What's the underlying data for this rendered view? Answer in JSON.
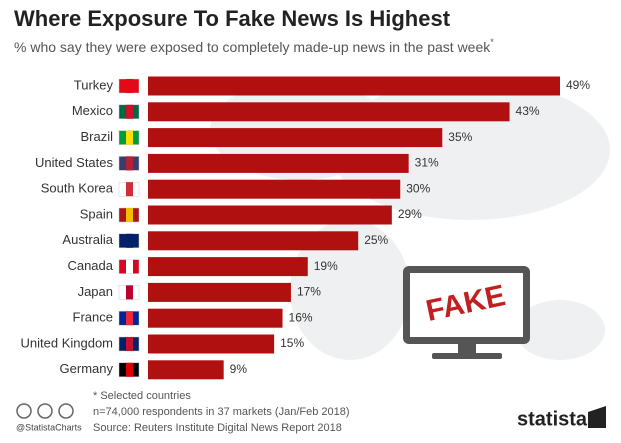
{
  "chart_data": {
    "type": "bar",
    "orientation": "horizontal",
    "title": "Where Exposure To Fake News Is Highest",
    "subtitle": "% who say they were exposed to completely made-up news in the past week",
    "subtitle_marker": "*",
    "categories": [
      "Turkey",
      "Mexico",
      "Brazil",
      "United States",
      "South Korea",
      "Spain",
      "Australia",
      "Canada",
      "Japan",
      "France",
      "United Kingdom",
      "Germany"
    ],
    "values": [
      49,
      43,
      35,
      31,
      30,
      29,
      25,
      19,
      17,
      16,
      15,
      9
    ],
    "value_labels": [
      "49%",
      "43%",
      "35%",
      "31%",
      "30%",
      "29%",
      "25%",
      "19%",
      "17%",
      "16%",
      "15%",
      "9%"
    ],
    "color": "#b0100f",
    "illustration_text": "FAKE",
    "notes": [
      "* Selected countries",
      "n=74,000 respondents in 37 markets (Jan/Feb 2018)",
      "Source: Reuters Institute Digital News Report 2018"
    ],
    "handle": "@StatistaCharts",
    "brand": "statista"
  }
}
